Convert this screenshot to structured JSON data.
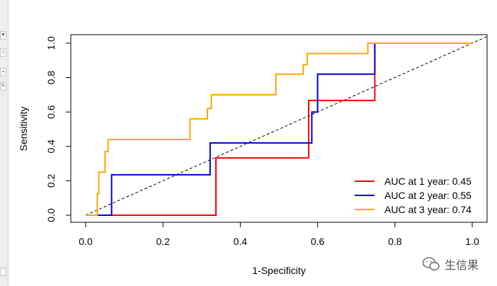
{
  "chart_data": {
    "type": "line",
    "title": "",
    "xlabel": "1-Specificity",
    "ylabel": "Sensitivity",
    "xlim": [
      0,
      1
    ],
    "ylim": [
      0,
      1
    ],
    "x_ticks": [
      "0.0",
      "0.2",
      "0.4",
      "0.6",
      "0.8",
      "1.0"
    ],
    "y_ticks": [
      "0.0",
      "0.2",
      "0.4",
      "0.6",
      "0.8",
      "1.0"
    ],
    "grid": false,
    "legend_position": "bottom-right",
    "reference_line": {
      "style": "dashed",
      "color": "#000000",
      "from": [
        0,
        0
      ],
      "to": [
        1,
        1
      ]
    },
    "series": [
      {
        "name": "AUC at 1 year: 0.45",
        "color": "#ff0000",
        "x": [
          0,
          0.067,
          0.067,
          0.337,
          0.337,
          0.577,
          0.577,
          0.748,
          0.748,
          1
        ],
        "y": [
          0,
          0,
          0,
          0,
          0.333,
          0.333,
          0.667,
          0.667,
          1,
          1
        ]
      },
      {
        "name": "AUC at 2 year: 0.55",
        "color": "#0000cc",
        "x": [
          0,
          0.067,
          0.067,
          0.322,
          0.322,
          0.585,
          0.585,
          0.6,
          0.6,
          0.748,
          0.748,
          1
        ],
        "y": [
          0,
          0,
          0.235,
          0.235,
          0.42,
          0.42,
          0.6,
          0.6,
          0.82,
          0.82,
          1,
          1
        ]
      },
      {
        "name": "AUC at 3 year: 0.74",
        "color": "#ffa500",
        "x": [
          0,
          0.03,
          0.03,
          0.034,
          0.034,
          0.05,
          0.05,
          0.058,
          0.058,
          0.27,
          0.27,
          0.315,
          0.315,
          0.325,
          0.325,
          0.492,
          0.492,
          0.563,
          0.563,
          0.573,
          0.573,
          0.73,
          0.73,
          1
        ],
        "y": [
          0,
          0,
          0.125,
          0.125,
          0.25,
          0.25,
          0.37,
          0.37,
          0.44,
          0.44,
          0.56,
          0.56,
          0.62,
          0.62,
          0.7,
          0.7,
          0.82,
          0.82,
          0.875,
          0.875,
          0.94,
          0.94,
          1,
          1
        ]
      }
    ]
  },
  "watermark": {
    "icon": "wechat-icon",
    "text": "生信果"
  }
}
